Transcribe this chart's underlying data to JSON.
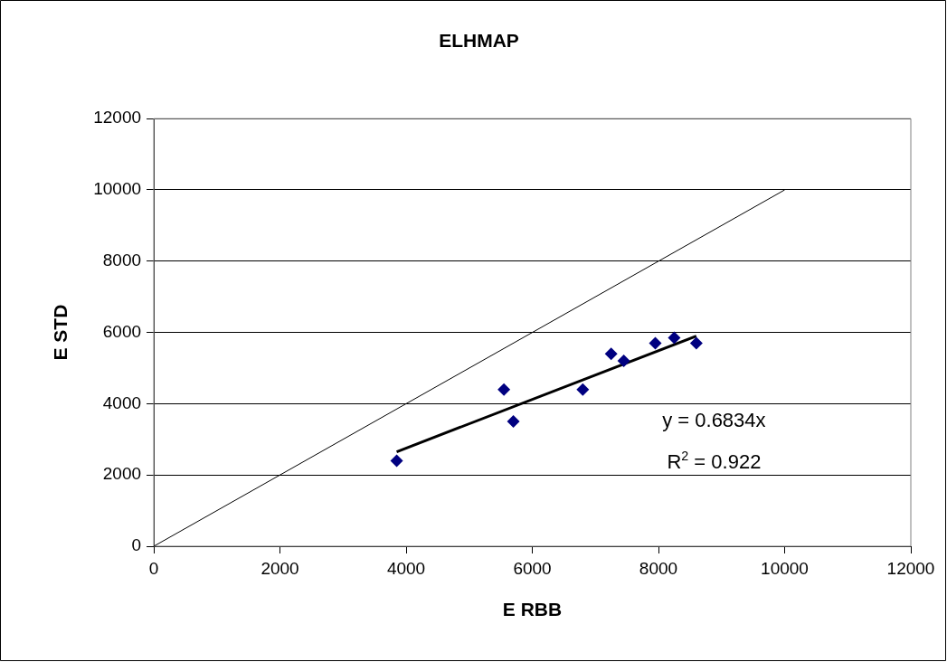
{
  "chart_data": {
    "type": "scatter",
    "title": "ELHMAP",
    "xlabel": "E RBB",
    "ylabel": "E STD",
    "xlim": [
      0,
      12000
    ],
    "xticks": [
      0,
      2000,
      4000,
      6000,
      8000,
      10000,
      12000
    ],
    "ylim": [
      0,
      12000
    ],
    "yticks": [
      0,
      2000,
      4000,
      6000,
      8000,
      10000,
      12000
    ],
    "grid": "y",
    "legend": false,
    "series": [
      {
        "type": "scatter",
        "marker": "diamond",
        "color": "#000080",
        "x": [
          3850,
          5550,
          5700,
          6800,
          7250,
          7450,
          7950,
          8250,
          8600
        ],
        "values": [
          2400,
          4400,
          3500,
          4400,
          5400,
          5200,
          5700,
          5850,
          5700
        ]
      },
      {
        "type": "line",
        "marker": "none",
        "color": "#000000",
        "x": [
          0,
          10000
        ],
        "values": [
          0,
          10000
        ]
      },
      {
        "type": "line",
        "marker": "none",
        "color": "#000000",
        "x": [
          3850,
          8600
        ],
        "values": [
          2650,
          5900
        ]
      }
    ],
    "annotations": [
      "y = 0.6834x",
      "R$^{2}$ = 0.922"
    ]
  }
}
